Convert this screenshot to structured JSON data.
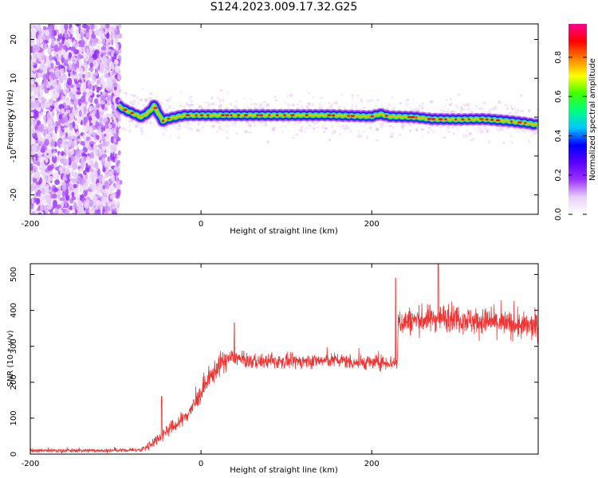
{
  "title": "S124.2023.009.17.32.G25",
  "chart_data": [
    {
      "type": "heatmap",
      "xlabel": "Height of straight line (km)",
      "ylabel": "Frequency (Hz)",
      "xlim": [
        -200,
        395
      ],
      "ylim": [
        -25,
        24
      ],
      "xticks": [
        -200,
        0,
        200
      ],
      "yticks": [
        -20,
        -10,
        0,
        10,
        20
      ],
      "colorbar": {
        "label": "Normalized spectral amplitude",
        "range": [
          0,
          0.97
        ],
        "ticks": [
          "0.0",
          "0.2",
          "0.4",
          "0.6",
          "0.8"
        ],
        "tick_values": [
          0.0,
          0.2,
          0.4,
          0.6,
          0.8
        ],
        "colormap": [
          "#ffffff",
          "#e8cff7",
          "#9b30ff",
          "#5a00ff",
          "#0000ff",
          "#00c8ff",
          "#00ff80",
          "#40ff00",
          "#ffff00",
          "#ff8000",
          "#ff0000",
          "#ff0090"
        ]
      },
      "noise_region_x": [
        -200,
        -95
      ],
      "ridge": {
        "x": [
          -97,
          -90,
          -80,
          -70,
          -60,
          -55,
          -50,
          -45,
          -40,
          -30,
          -20,
          0,
          20,
          50,
          100,
          150,
          180,
          200,
          210,
          220,
          250,
          270,
          300,
          330,
          360,
          380,
          395
        ],
        "y": [
          3,
          2,
          1,
          0,
          1.5,
          3,
          1,
          -1,
          -0.5,
          0,
          0.5,
          0.5,
          0.5,
          0.5,
          0.5,
          0.5,
          0.3,
          0.2,
          0.8,
          0.2,
          0,
          -0.5,
          -0.6,
          -0.5,
          -1,
          -1.5,
          -2
        ]
      }
    },
    {
      "type": "line",
      "xlabel": "Height of straight line (km)",
      "ylabel": "SNR (10 * v/v)",
      "xlim": [
        -200,
        395
      ],
      "ylim": [
        0,
        530
      ],
      "xticks": [
        -200,
        0,
        200
      ],
      "yticks": [
        0,
        100,
        200,
        300,
        400,
        500
      ],
      "color": "#ee3333",
      "series": [
        {
          "x": [
            -200,
            -100,
            -70,
            -60,
            -50,
            -40,
            -30,
            -20,
            -10,
            0,
            10,
            20,
            30,
            40,
            50,
            60,
            80,
            100,
            120,
            140,
            160,
            180,
            200,
            210,
            230,
            231,
            240,
            260,
            280,
            300,
            320,
            340,
            360,
            380,
            395
          ],
          "y": [
            10,
            10,
            12,
            25,
            45,
            65,
            80,
            100,
            130,
            170,
            210,
            245,
            265,
            270,
            260,
            258,
            258,
            258,
            258,
            260,
            262,
            255,
            255,
            255,
            255,
            365,
            370,
            375,
            380,
            380,
            370,
            368,
            362,
            355,
            355
          ]
        }
      ],
      "peaks": [
        {
          "x": -46,
          "y": 160
        },
        {
          "x": 39,
          "y": 365
        },
        {
          "x": 278,
          "y": 535
        },
        {
          "x": 228,
          "y": 490
        }
      ]
    }
  ]
}
